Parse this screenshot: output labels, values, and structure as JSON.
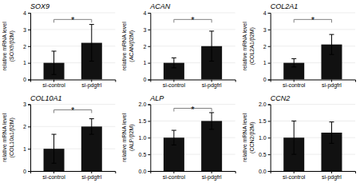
{
  "chart_data": [
    {
      "type": "bar",
      "title": "SOX9",
      "ylabel": [
        "relative mRNA level",
        "(SOX9/β2M)"
      ],
      "categories": [
        "si-control",
        "si-pdgfrl"
      ],
      "values": [
        1.0,
        2.2
      ],
      "errors": [
        0.7,
        1.1
      ],
      "color": "#111111",
      "ylim": [
        0,
        4
      ],
      "yticks": [
        0,
        1,
        2,
        3,
        4
      ],
      "grid": true,
      "annotations": [
        {
          "text": "*",
          "y": 3.6
        }
      ]
    },
    {
      "type": "bar",
      "title": "ACAN",
      "ylabel": [
        "relative mRNA level",
        "(ACAN/β2M)"
      ],
      "categories": [
        "si-control",
        "si-pdgfrl"
      ],
      "values": [
        1.0,
        2.0
      ],
      "errors": [
        0.3,
        0.9
      ],
      "color": "#111111",
      "ylim": [
        0,
        4
      ],
      "yticks": [
        0,
        1,
        2,
        3,
        4
      ],
      "grid": true,
      "annotations": [
        {
          "text": "*",
          "y": 3.6
        }
      ]
    },
    {
      "type": "bar",
      "title": "COL2A1",
      "ylabel": [
        "relative mRNA level",
        "(COL2A1/β2M)"
      ],
      "categories": [
        "si-control",
        "si-pdgfrl"
      ],
      "values": [
        1.0,
        2.1
      ],
      "errors": [
        0.25,
        0.6
      ],
      "color": "#111111",
      "ylim": [
        0,
        4
      ],
      "yticks": [
        0,
        1,
        2,
        3,
        4
      ],
      "grid": true,
      "annotations": [
        {
          "text": "*",
          "y": 3.6
        }
      ]
    },
    {
      "type": "bar",
      "title": "COL10A1",
      "ylabel": [
        "relative mRNA level",
        "(COL10a1/β2M)"
      ],
      "categories": [
        "si-control",
        "si-pdgfrl"
      ],
      "values": [
        1.0,
        2.0
      ],
      "errors": [
        0.65,
        0.35
      ],
      "color": "#111111",
      "ylim": [
        0,
        3
      ],
      "yticks": [
        0,
        1,
        2,
        3
      ],
      "grid": true,
      "annotations": [
        {
          "text": "*",
          "y": 2.75
        }
      ]
    },
    {
      "type": "bar",
      "title": "ALP",
      "ylabel": [
        "relative mRNA level",
        "(ALP/β2M)"
      ],
      "categories": [
        "si-control",
        "si-pdgfrl"
      ],
      "values": [
        1.0,
        1.5
      ],
      "errors": [
        0.22,
        0.25
      ],
      "color": "#111111",
      "ylim": [
        0,
        2
      ],
      "yticks": [
        {
          "value": 0,
          "label": "0.0"
        },
        0.5,
        {
          "value": 1.0,
          "label": "1.0"
        },
        1.5,
        {
          "value": 2.0,
          "label": "2.0"
        }
      ],
      "grid": true,
      "annotations": [
        {
          "text": "*",
          "y": 1.88
        }
      ]
    },
    {
      "type": "bar",
      "title": "CCN2",
      "ylabel": [
        "relative mRNA level",
        "(CCN2/β2M)"
      ],
      "categories": [
        "si-control",
        "si-pdgfrl"
      ],
      "values": [
        1.0,
        1.15
      ],
      "errors": [
        0.5,
        0.32
      ],
      "color": "#111111",
      "ylim": [
        0,
        2
      ],
      "yticks": [
        {
          "value": 0,
          "label": "0.0"
        },
        0.5,
        {
          "value": 1.0,
          "label": "1.0"
        },
        1.5,
        {
          "value": 2.0,
          "label": "2.0"
        }
      ],
      "grid": true
    }
  ]
}
